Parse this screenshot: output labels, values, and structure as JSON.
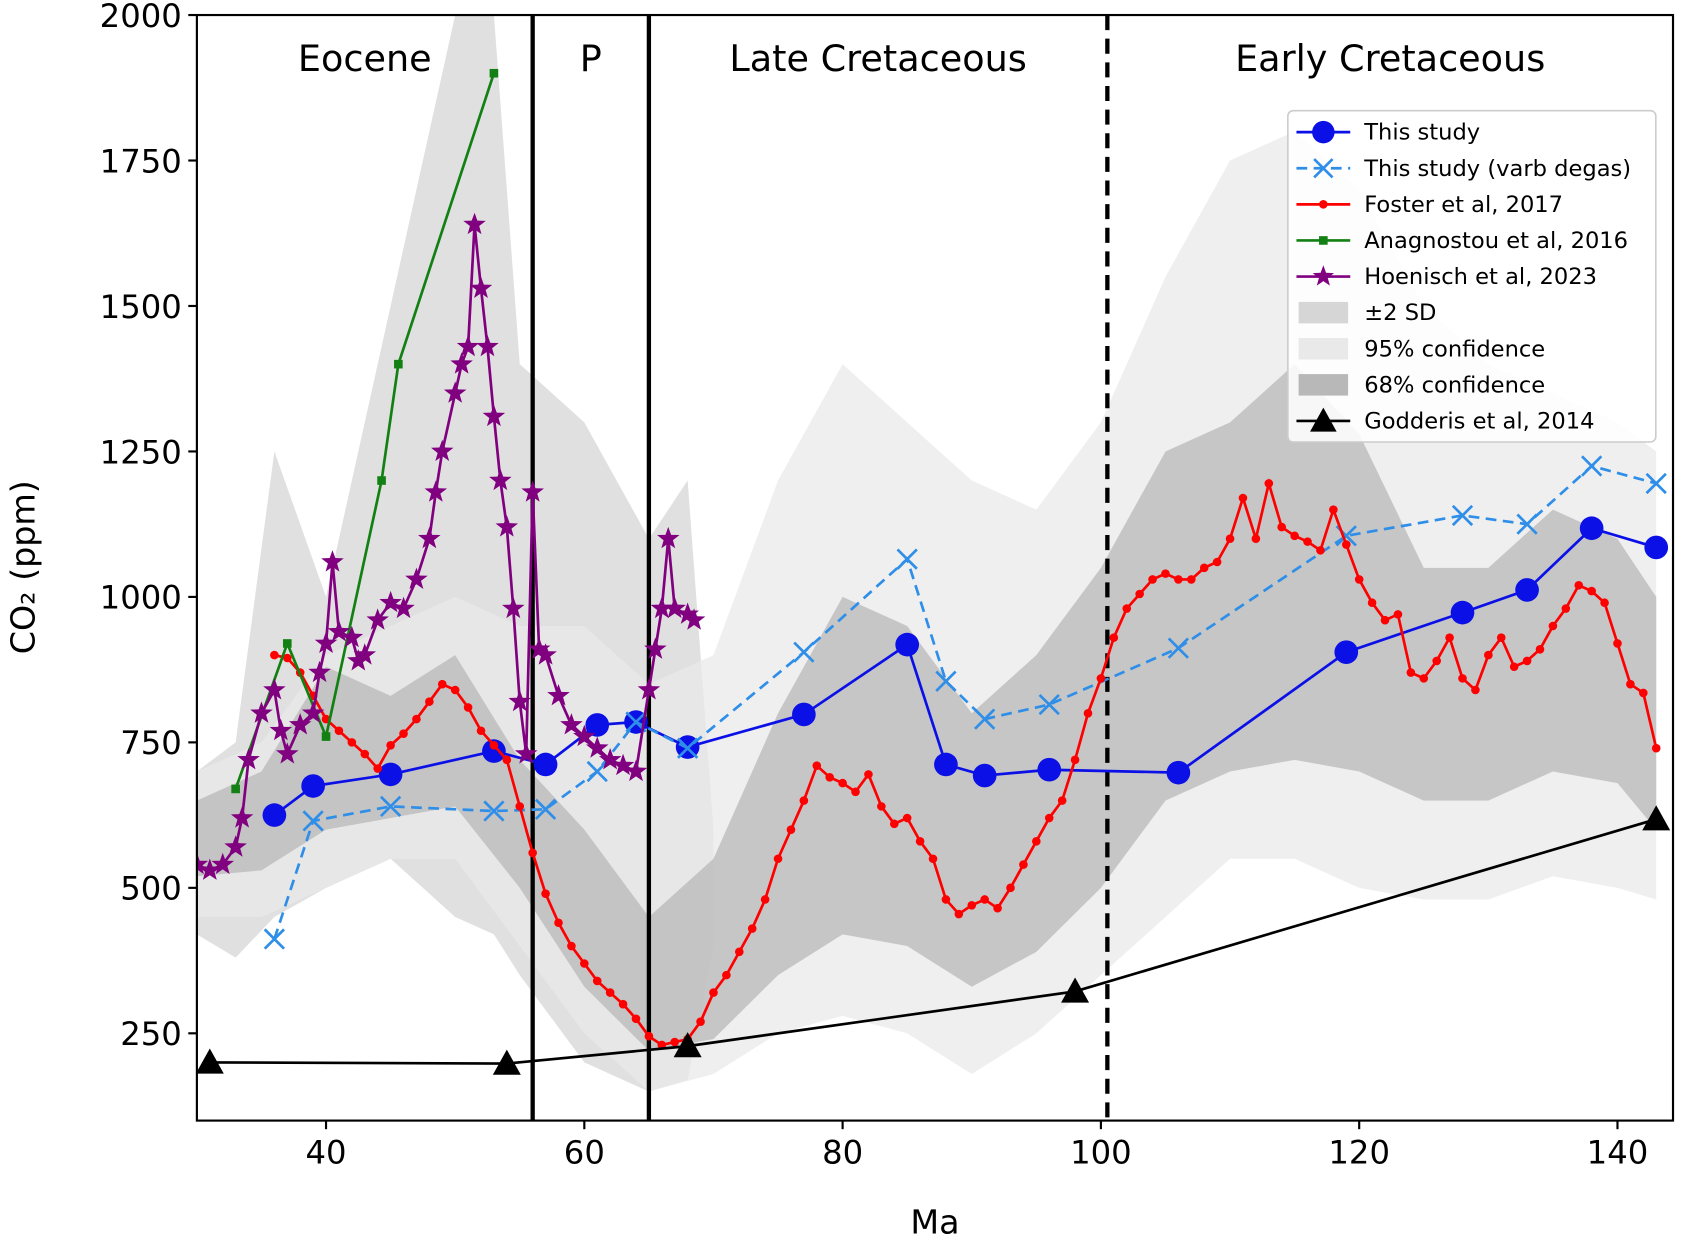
{
  "chart_data": {
    "type": "line",
    "xlabel": "Ma",
    "ylabel": "CO₂ (ppm)",
    "xlim": [
      30,
      144.3
    ],
    "ylim": [
      100,
      2000
    ],
    "xticks": [
      40,
      60,
      80,
      100,
      120,
      140
    ],
    "yticks": [
      250,
      500,
      750,
      1000,
      1250,
      1500,
      1750,
      2000
    ],
    "legend": "upper right",
    "boundaries": [
      {
        "x": 56,
        "style": "solid"
      },
      {
        "x": 65,
        "style": "solid"
      },
      {
        "x": 100.5,
        "style": "dashed"
      }
    ],
    "period_labels": [
      "Eocene",
      "P",
      "Late Cretaceous",
      "Early Cretaceous"
    ],
    "series": [
      {
        "name": "This study",
        "kind": "line",
        "color": "#0a10e6",
        "marker": "circle",
        "dash": "solid",
        "x": [
          36,
          39,
          45,
          53,
          57,
          61,
          64,
          68,
          77,
          85,
          88,
          91,
          96,
          106,
          119,
          128,
          133,
          138,
          143
        ],
        "values": [
          625,
          675,
          695,
          735,
          712,
          780,
          785,
          742,
          798,
          918,
          712,
          693,
          703,
          698,
          905,
          973,
          1012,
          1118,
          1085
        ]
      },
      {
        "name": "This study (varb degas)",
        "kind": "line",
        "color": "#2e8ee8",
        "marker": "x",
        "dash": "dashed",
        "x": [
          36,
          39,
          45,
          53,
          57,
          61,
          64,
          68,
          77,
          85,
          88,
          91,
          96,
          106,
          119,
          128,
          133,
          138,
          143
        ],
        "values": [
          412,
          615,
          640,
          632,
          635,
          700,
          785,
          740,
          905,
          1065,
          855,
          790,
          815,
          912,
          1105,
          1140,
          1125,
          1225,
          1195
        ]
      },
      {
        "name": "Foster et al, 2017",
        "kind": "line",
        "color": "#ff0000",
        "marker": "dot",
        "dash": "solid",
        "x": [
          36,
          37,
          38,
          39,
          40,
          41,
          42,
          43,
          44,
          45,
          46,
          47,
          48,
          49,
          50,
          51,
          52,
          53,
          54,
          55,
          56,
          57,
          58,
          59,
          60,
          61,
          62,
          63,
          64,
          65,
          66,
          67,
          68,
          69,
          70,
          71,
          72,
          73,
          74,
          75,
          76,
          77,
          78,
          79,
          80,
          81,
          82,
          83,
          84,
          85,
          86,
          87,
          88,
          89,
          90,
          91,
          92,
          93,
          94,
          95,
          96,
          97,
          98,
          99,
          100,
          101,
          102,
          103,
          104,
          105,
          106,
          107,
          108,
          109,
          110,
          111,
          112,
          113,
          114,
          115,
          116,
          117,
          118,
          119,
          120,
          121,
          122,
          123,
          124,
          125,
          126,
          127,
          128,
          129,
          130,
          131,
          132,
          133,
          134,
          135,
          136,
          137,
          138,
          139,
          140,
          141,
          142,
          143
        ],
        "values": [
          900,
          895,
          870,
          830,
          790,
          770,
          750,
          730,
          705,
          745,
          765,
          790,
          820,
          850,
          840,
          810,
          770,
          745,
          720,
          640,
          560,
          490,
          440,
          400,
          370,
          340,
          320,
          300,
          275,
          245,
          230,
          235,
          240,
          270,
          320,
          350,
          390,
          430,
          480,
          550,
          600,
          650,
          710,
          690,
          680,
          665,
          695,
          640,
          610,
          620,
          580,
          550,
          480,
          455,
          470,
          480,
          465,
          500,
          540,
          580,
          620,
          650,
          720,
          800,
          860,
          930,
          980,
          1005,
          1030,
          1040,
          1030,
          1030,
          1050,
          1060,
          1100,
          1170,
          1100,
          1195,
          1120,
          1105,
          1095,
          1080,
          1150,
          1090,
          1030,
          990,
          960,
          970,
          870,
          860,
          890,
          930,
          860,
          840,
          900,
          930,
          880,
          890,
          910,
          950,
          980,
          1020,
          1010,
          990,
          920,
          850,
          835,
          740
        ]
      },
      {
        "name": "Anagnostou et al, 2016",
        "kind": "line",
        "color": "#128012",
        "marker": "square",
        "dash": "solid",
        "x": [
          33,
          37,
          40,
          44.3,
          45.6,
          53
        ],
        "values": [
          670,
          920,
          760,
          1200,
          1400,
          1900
        ]
      },
      {
        "name": "Hoenisch et al, 2023",
        "kind": "line",
        "color": "#800080",
        "marker": "star",
        "dash": "solid",
        "x": [
          30,
          31,
          32,
          33,
          33.5,
          34,
          35,
          36,
          36.5,
          37,
          38,
          39,
          39.5,
          40,
          40.5,
          41,
          42,
          42.5,
          43,
          44,
          45,
          46,
          47,
          48,
          48.5,
          49,
          50,
          50.5,
          51,
          51.5,
          52,
          52.5,
          53,
          53.5,
          54,
          54.5,
          55,
          55.5,
          56,
          56.5,
          57,
          58,
          59,
          60,
          61,
          62,
          63,
          64,
          65,
          65.5,
          66,
          66.5,
          67,
          68,
          68.5
        ],
        "values": [
          540,
          530,
          540,
          570,
          620,
          720,
          800,
          840,
          770,
          730,
          780,
          800,
          870,
          920,
          1060,
          940,
          930,
          890,
          900,
          960,
          990,
          980,
          1030,
          1100,
          1180,
          1250,
          1350,
          1400,
          1430,
          1640,
          1530,
          1430,
          1310,
          1200,
          1120,
          980,
          820,
          730,
          1180,
          910,
          900,
          830,
          780,
          760,
          740,
          720,
          710,
          700,
          840,
          910,
          980,
          1100,
          980,
          970,
          960
        ]
      },
      {
        "name": "±2 SD",
        "kind": "band",
        "color": "#d6d6d6",
        "x": [
          30,
          33,
          36,
          40,
          45,
          50,
          53,
          55,
          60,
          65,
          68,
          70
        ],
        "low": [
          420,
          380,
          450,
          500,
          550,
          450,
          420,
          350,
          200,
          150,
          170,
          400
        ],
        "high": [
          700,
          750,
          1250,
          1000,
          1500,
          2000,
          2000,
          1400,
          1300,
          1100,
          1200,
          600
        ]
      },
      {
        "name": "95% confidence",
        "kind": "band",
        "color": "#e9e9e9",
        "x": [
          30,
          35,
          40,
          45,
          50,
          55,
          60,
          65,
          70,
          75,
          80,
          85,
          90,
          95,
          100,
          105,
          110,
          115,
          120,
          125,
          130,
          135,
          140,
          143
        ],
        "low": [
          450,
          450,
          500,
          550,
          550,
          400,
          250,
          150,
          180,
          250,
          280,
          250,
          180,
          250,
          350,
          450,
          550,
          550,
          500,
          480,
          480,
          520,
          500,
          480
        ],
        "high": [
          700,
          750,
          900,
          950,
          1000,
          950,
          950,
          850,
          900,
          1200,
          1400,
          1300,
          1200,
          1150,
          1300,
          1550,
          1750,
          1800,
          1700,
          1500,
          1400,
          1350,
          1300,
          1250
        ]
      },
      {
        "name": "68% confidence",
        "kind": "band",
        "color": "#b8b8b8",
        "x": [
          30,
          35,
          40,
          45,
          50,
          55,
          60,
          65,
          70,
          75,
          80,
          85,
          90,
          95,
          100,
          105,
          110,
          115,
          120,
          125,
          130,
          135,
          140,
          143
        ],
        "low": [
          520,
          530,
          600,
          620,
          640,
          500,
          330,
          220,
          240,
          350,
          420,
          400,
          330,
          390,
          500,
          650,
          700,
          720,
          700,
          650,
          650,
          700,
          680,
          600
        ],
        "high": [
          650,
          700,
          880,
          830,
          900,
          720,
          600,
          450,
          550,
          800,
          1000,
          950,
          800,
          900,
          1050,
          1250,
          1300,
          1400,
          1280,
          1050,
          1050,
          1150,
          1100,
          1000
        ]
      },
      {
        "name": "Godderis et al, 2014",
        "kind": "line",
        "color": "#000000",
        "marker": "triangle",
        "dash": "solid",
        "x": [
          31,
          54,
          68,
          98,
          143
        ],
        "values": [
          200,
          198,
          228,
          322,
          618
        ]
      }
    ]
  }
}
